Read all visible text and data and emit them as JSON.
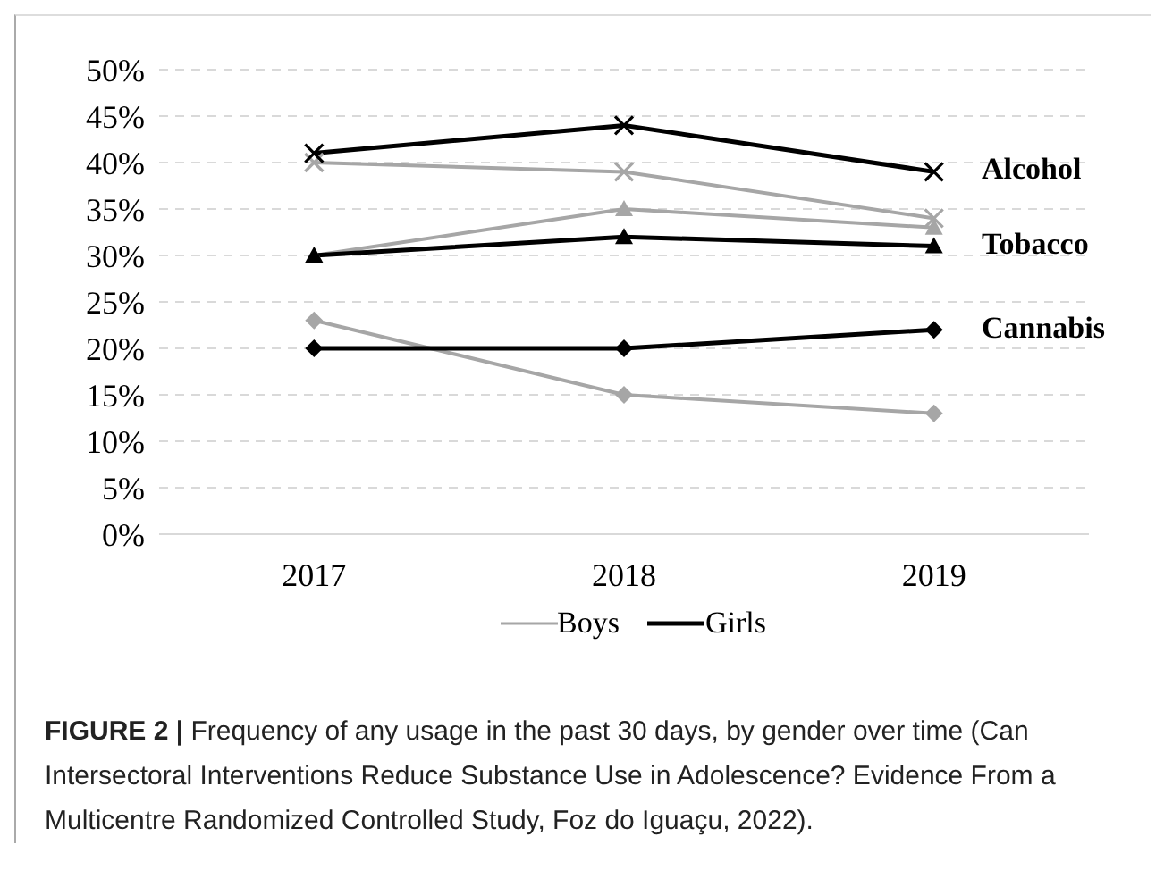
{
  "chart_data": {
    "type": "line",
    "categories": [
      "2017",
      "2018",
      "2019"
    ],
    "series": [
      {
        "name": "Boys",
        "color": "#a6a6a6",
        "marker": "cross",
        "values": [
          40,
          39,
          34
        ]
      },
      {
        "name": "Girls",
        "color": "#000000",
        "marker": "cross",
        "values": [
          41,
          44,
          39
        ]
      },
      {
        "color": "#a6a6a6",
        "marker": "triangle",
        "values": [
          30,
          35,
          33
        ]
      },
      {
        "color": "#000000",
        "marker": "triangle",
        "values": [
          30,
          32,
          31
        ]
      },
      {
        "color": "#a6a6a6",
        "marker": "diamond",
        "values": [
          23,
          15,
          13
        ]
      },
      {
        "color": "#000000",
        "marker": "diamond",
        "values": [
          20,
          20,
          22
        ]
      }
    ],
    "ylim": [
      0,
      50
    ],
    "yticks": [
      {
        "value": 0,
        "label": "0%"
      },
      {
        "value": 5,
        "label": "5%"
      },
      {
        "value": 10,
        "label": "10%"
      },
      {
        "value": 15,
        "label": "15%"
      },
      {
        "value": 20,
        "label": "20%"
      },
      {
        "value": 25,
        "label": "25%"
      },
      {
        "value": 30,
        "label": "30%"
      },
      {
        "value": 35,
        "label": "35%"
      },
      {
        "value": 40,
        "label": "40%"
      },
      {
        "value": 45,
        "label": "45%"
      },
      {
        "value": 50,
        "label": "50%"
      }
    ],
    "grid": "y",
    "legend": "bottom",
    "line_style": "solid",
    "annotations": [
      "Alcohol",
      "Tobacco",
      "Cannabis",
      "FIGURE 2 |",
      "Frequency of any usage in the past 30 days, by gender over time (Can Intersectoral Interventions Reduce Substance Use in Adolescence? Evidence From a Multicentre Randomized Controlled Study, Foz do Iguaçu, 2022)."
    ]
  }
}
